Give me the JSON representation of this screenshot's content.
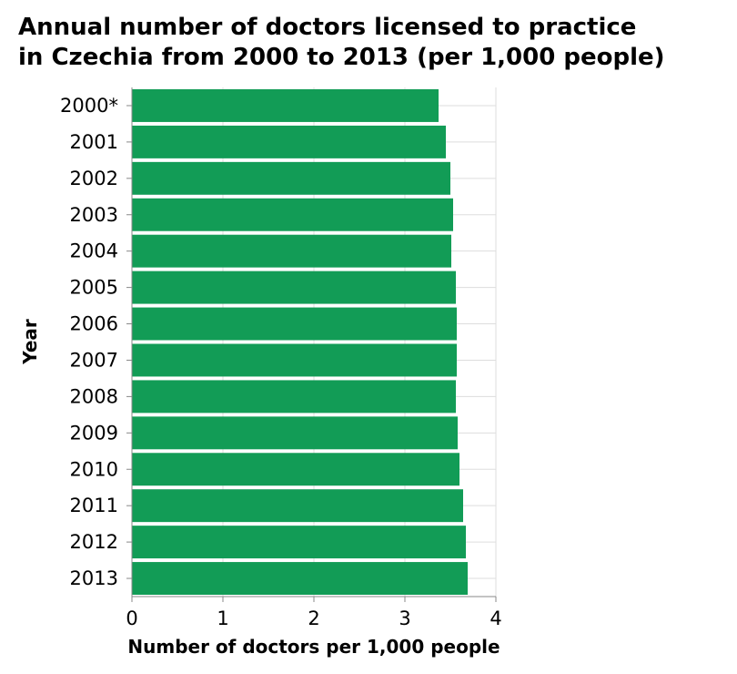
{
  "chart_data": {
    "type": "bar",
    "orientation": "horizontal",
    "title_lines": [
      "Annual number of doctors licensed to practice",
      "in Czechia from 2000 to 2013 (per 1,000 people)"
    ],
    "categories": [
      "2000*",
      "2001",
      "2002",
      "2003",
      "2004",
      "2005",
      "2006",
      "2007",
      "2008",
      "2009",
      "2010",
      "2011",
      "2012",
      "2013"
    ],
    "values": [
      3.37,
      3.45,
      3.5,
      3.53,
      3.51,
      3.56,
      3.57,
      3.57,
      3.56,
      3.58,
      3.6,
      3.64,
      3.67,
      3.69
    ],
    "xlabel": "Number of doctors per 1,000 people",
    "ylabel": "Year",
    "xlim": [
      0,
      4
    ],
    "xticks": [
      0,
      1,
      2,
      3,
      4
    ],
    "grid": true,
    "bar_color": "#129c56"
  }
}
